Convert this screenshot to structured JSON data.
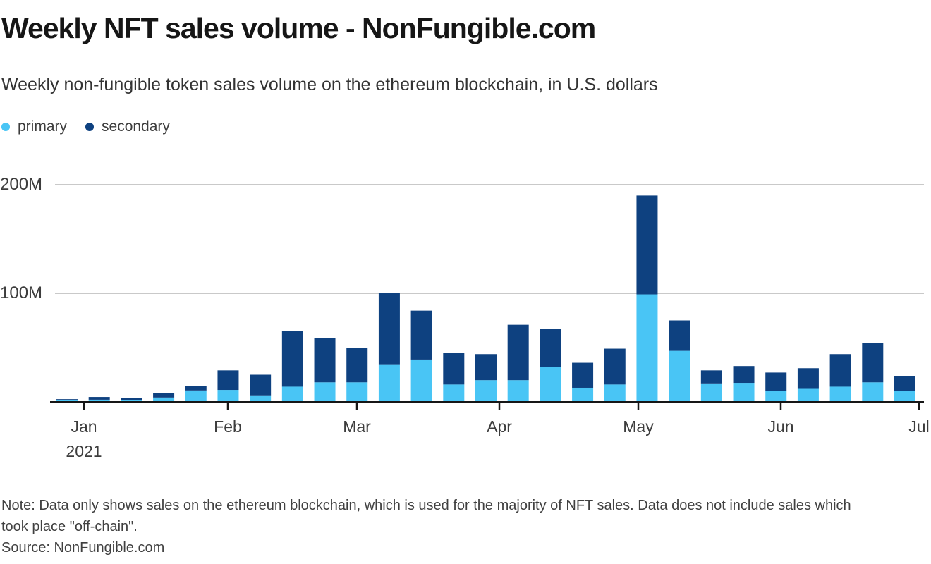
{
  "header": {
    "title": "Weekly NFT sales volume - NonFungible.com",
    "subtitle": "Weekly non-fungible token sales volume on the ethereum blockchain, in U.S. dollars"
  },
  "legend": [
    {
      "label": "primary",
      "color": "#49C5F5"
    },
    {
      "label": "secondary",
      "color": "#0E4180"
    }
  ],
  "colors": {
    "primary": "#49C5F5",
    "secondary": "#0E4180",
    "gridline": "#C9C9C9",
    "axis": "#161616",
    "title_text": "#161616",
    "subtitle_text": "#333333",
    "tick_text": "#3d3d3d",
    "note_text": "#404040"
  },
  "chart_data": {
    "type": "bar",
    "subtype": "stacked",
    "title": "Weekly NFT sales volume - NonFungible.com",
    "subtitle": "Weekly non-fungible token sales volume on the ethereum blockchain, in U.S. dollars",
    "unit": "millions of U.S. dollars",
    "ylim": [
      0,
      210
    ],
    "grid": "horizontal",
    "legend_position": "top-left",
    "y_ticks": [
      {
        "value": 100,
        "label": "100M"
      },
      {
        "value": 200,
        "label": "200M"
      }
    ],
    "x_ticks": [
      {
        "label": "Jan",
        "sublabel": "2021"
      },
      {
        "label": "Feb",
        "sublabel": ""
      },
      {
        "label": "Mar",
        "sublabel": ""
      },
      {
        "label": "Apr",
        "sublabel": ""
      },
      {
        "label": "May",
        "sublabel": ""
      },
      {
        "label": "Jun",
        "sublabel": ""
      },
      {
        "label": "Jul",
        "sublabel": ""
      }
    ],
    "weeks": [
      "Dec 28",
      "Jan 4",
      "Jan 11",
      "Jan 18",
      "Jan 25",
      "Feb 1",
      "Feb 8",
      "Feb 15",
      "Feb 22",
      "Mar 1",
      "Mar 8",
      "Mar 15",
      "Mar 22",
      "Mar 29",
      "Apr 5",
      "Apr 12",
      "Apr 19",
      "Apr 26",
      "May 3",
      "May 10",
      "May 17",
      "May 24",
      "May 31",
      "Jun 7",
      "Jun 14",
      "Jun 21",
      "Jun 28"
    ],
    "series": [
      {
        "name": "primary",
        "color": "#49C5F5",
        "values": [
          1.5,
          2,
          1.5,
          4,
          10.5,
          11,
          6,
          14,
          18,
          18,
          34,
          39,
          16,
          20,
          20,
          32,
          13,
          16,
          99,
          47,
          17,
          17.5,
          10,
          12,
          14,
          18,
          10
        ]
      },
      {
        "name": "secondary",
        "color": "#0E4180",
        "values": [
          1,
          2.5,
          2,
          4,
          4,
          18,
          19,
          51,
          41,
          32,
          66,
          45,
          29,
          24,
          51,
          35,
          23,
          33,
          91,
          28,
          12,
          15.5,
          17,
          19,
          30,
          36,
          14
        ]
      }
    ],
    "totals": [
      2.5,
      4.5,
      3.5,
      8,
      14.5,
      29,
      25,
      65,
      59,
      50,
      100,
      84,
      45,
      44,
      71,
      67,
      36,
      49,
      190,
      75,
      29,
      33,
      27,
      31,
      44,
      54,
      24
    ]
  },
  "footer": {
    "note_line1": "Note: Data only shows sales on the ethereum blockchain, which is used for the majority of NFT sales. Data does not include sales which",
    "note_line2": "took place \"off-chain\".",
    "source": "Source: NonFungible.com"
  }
}
